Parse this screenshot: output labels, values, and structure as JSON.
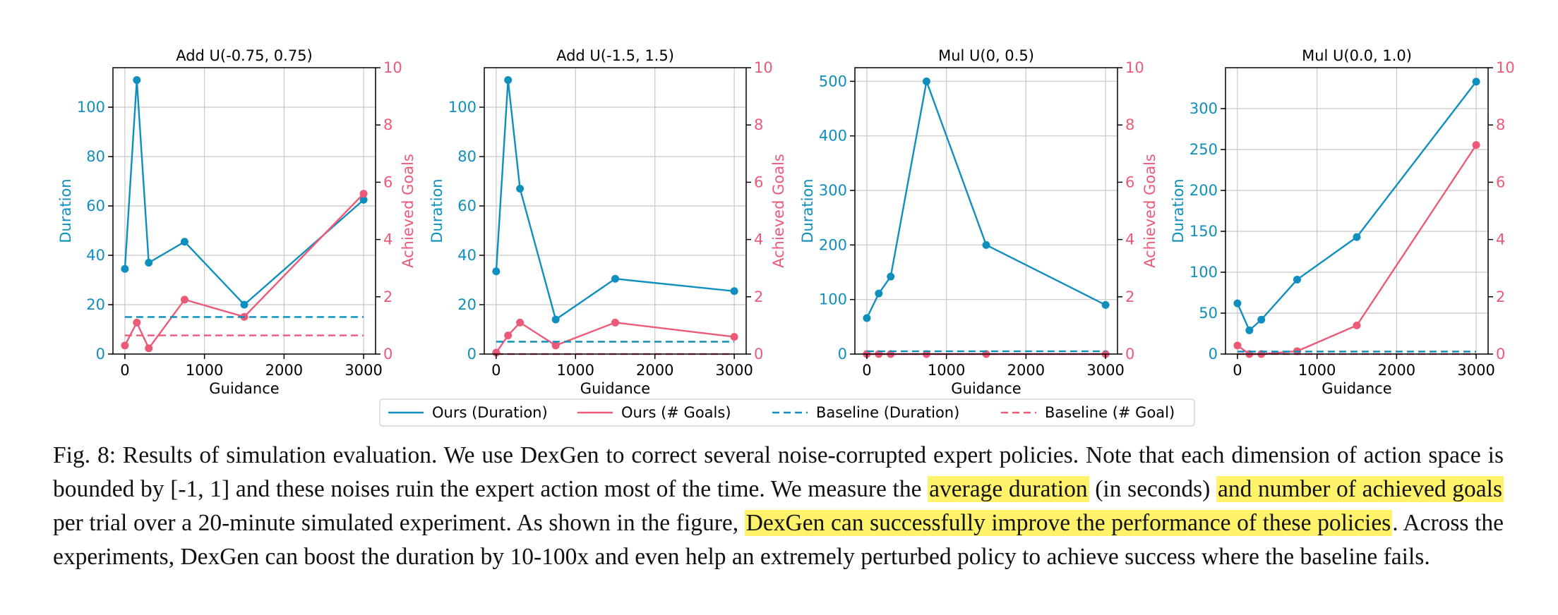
{
  "colors": {
    "duration": "#0f8fbd",
    "goals": "#ec5a78",
    "grid": "#c8c8c8",
    "axis": "#000000",
    "highlight": "#fff36b"
  },
  "chart_data": [
    {
      "type": "line",
      "title": "Add U(-0.75, 0.75)",
      "xlabel": "Guidance",
      "ylabel_left": "Duration",
      "ylabel_right": "Achieved Goals",
      "xlim": [
        -150,
        3150
      ],
      "xticks": [
        0,
        1000,
        2000,
        3000
      ],
      "ylim_left": [
        0,
        116
      ],
      "yticks_left": [
        0,
        20,
        40,
        60,
        80,
        100
      ],
      "ylim_right": [
        0,
        10
      ],
      "yticks_right": [
        0,
        2,
        4,
        6,
        8,
        10
      ],
      "grid": true,
      "series": [
        {
          "name": "Ours (Duration)",
          "axis": "left",
          "x": [
            0,
            150,
            300,
            750,
            1500,
            3000
          ],
          "y": [
            34.5,
            111,
            37,
            45.5,
            20,
            62.5
          ]
        },
        {
          "name": "Ours (# Goals)",
          "axis": "right",
          "x": [
            0,
            150,
            300,
            750,
            1500,
            3000
          ],
          "y": [
            0.3,
            1.1,
            0.2,
            1.9,
            1.3,
            5.6
          ]
        },
        {
          "name": "Baseline (Duration)",
          "axis": "left",
          "dashed": true,
          "x": [
            0,
            3000
          ],
          "y": [
            15,
            15
          ]
        },
        {
          "name": "Baseline (# Goal)",
          "axis": "right",
          "dashed": true,
          "x": [
            0,
            3000
          ],
          "y": [
            0.65,
            0.65
          ]
        }
      ]
    },
    {
      "type": "line",
      "title": "Add U(-1.5, 1.5)",
      "xlabel": "Guidance",
      "ylabel_left": "Duration",
      "ylabel_right": "Achieved Goals",
      "xlim": [
        -150,
        3150
      ],
      "xticks": [
        0,
        1000,
        2000,
        3000
      ],
      "ylim_left": [
        0,
        116
      ],
      "yticks_left": [
        0,
        20,
        40,
        60,
        80,
        100
      ],
      "ylim_right": [
        0,
        10
      ],
      "yticks_right": [
        0,
        2,
        4,
        6,
        8,
        10
      ],
      "grid": true,
      "series": [
        {
          "name": "Ours (Duration)",
          "axis": "left",
          "x": [
            0,
            150,
            300,
            750,
            1500,
            3000
          ],
          "y": [
            33.5,
            111,
            67,
            14,
            30.5,
            25.5
          ]
        },
        {
          "name": "Ours (# Goals)",
          "axis": "right",
          "x": [
            0,
            150,
            300,
            750,
            1500,
            3000
          ],
          "y": [
            0.05,
            0.65,
            1.1,
            0.3,
            1.1,
            0.6
          ]
        },
        {
          "name": "Baseline (Duration)",
          "axis": "left",
          "dashed": true,
          "x": [
            0,
            3000
          ],
          "y": [
            5,
            5
          ]
        },
        {
          "name": "Baseline (# Goal)",
          "axis": "right",
          "dashed": true,
          "x": [
            0,
            3000
          ],
          "y": [
            0,
            0
          ]
        }
      ]
    },
    {
      "type": "line",
      "title": "Mul U(0, 0.5)",
      "xlabel": "Guidance",
      "ylabel_left": "Duration",
      "ylabel_right": "Achieved Goals",
      "xlim": [
        -150,
        3150
      ],
      "xticks": [
        0,
        1000,
        2000,
        3000
      ],
      "ylim_left": [
        0,
        525
      ],
      "yticks_left": [
        0,
        100,
        200,
        300,
        400,
        500
      ],
      "ylim_right": [
        0,
        10
      ],
      "yticks_right": [
        0,
        2,
        4,
        6,
        8,
        10
      ],
      "grid": true,
      "series": [
        {
          "name": "Ours (Duration)",
          "axis": "left",
          "x": [
            0,
            150,
            300,
            750,
            1500,
            3000
          ],
          "y": [
            66,
            111,
            142,
            500,
            200,
            90
          ]
        },
        {
          "name": "Ours (# Goals)",
          "axis": "right",
          "x": [
            0,
            150,
            300,
            750,
            1500,
            3000
          ],
          "y": [
            0,
            0,
            0,
            0,
            0,
            0
          ]
        },
        {
          "name": "Baseline (Duration)",
          "axis": "left",
          "dashed": true,
          "x": [
            0,
            3000
          ],
          "y": [
            5,
            5
          ]
        },
        {
          "name": "Baseline (# Goal)",
          "axis": "right",
          "dashed": true,
          "x": [
            0,
            3000
          ],
          "y": [
            0,
            0
          ]
        }
      ]
    },
    {
      "type": "line",
      "title": "Mul U(0.0, 1.0)",
      "xlabel": "Guidance",
      "ylabel_left": "Duration",
      "ylabel_right": "",
      "xlim": [
        -150,
        3150
      ],
      "xticks": [
        0,
        1000,
        2000,
        3000
      ],
      "ylim_left": [
        0,
        350
      ],
      "yticks_left": [
        0,
        50,
        100,
        150,
        200,
        250,
        300
      ],
      "ylim_right": [
        0,
        10
      ],
      "yticks_right": [
        0,
        2,
        4,
        6,
        8,
        10
      ],
      "grid": true,
      "series": [
        {
          "name": "Ours (Duration)",
          "axis": "left",
          "x": [
            0,
            150,
            300,
            750,
            1500,
            3000
          ],
          "y": [
            62,
            29,
            42,
            91,
            143,
            333
          ]
        },
        {
          "name": "Ours (# Goals)",
          "axis": "right",
          "x": [
            0,
            150,
            300,
            750,
            1500,
            3000
          ],
          "y": [
            0.3,
            0,
            0,
            0.1,
            1.0,
            7.3
          ]
        },
        {
          "name": "Baseline (Duration)",
          "axis": "left",
          "dashed": true,
          "x": [
            0,
            3000
          ],
          "y": [
            3,
            3
          ]
        },
        {
          "name": "Baseline (# Goal)",
          "axis": "right",
          "dashed": true,
          "x": [
            0,
            3000
          ],
          "y": [
            0,
            0
          ]
        }
      ]
    }
  ],
  "legend": [
    "Ours (Duration)",
    "Ours (# Goals)",
    "Baseline (Duration)",
    "Baseline (# Goal)"
  ],
  "caption": {
    "p1": "Fig. 8: Results of simulation evaluation. We use DexGen to correct several noise-corrupted expert policies. Note that each dimension of action space is bounded by [-1, 1] and these noises ruin the expert action most of the time. We measure the ",
    "h1": "average duration",
    "p2": " (in seconds) ",
    "h2": "and number of achieved goals",
    "p3": " per trial over a 20-minute simulated experiment. As shown in the figure, ",
    "h3": "DexGen can successfully improve the performance of these policies",
    "p4": ". Across the experiments, DexGen can boost the duration by 10-100x and even help an extremely perturbed policy to achieve success where the baseline fails."
  }
}
